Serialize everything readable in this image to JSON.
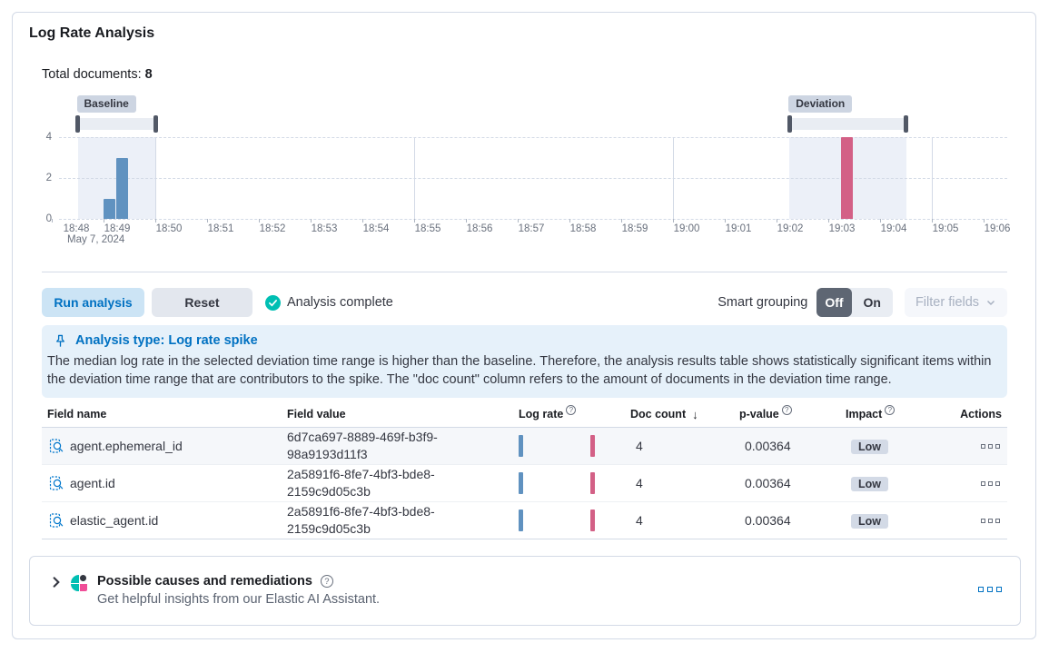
{
  "panel": {
    "title": "Log Rate Analysis",
    "total_documents_label": "Total documents:",
    "total_documents_value": "8"
  },
  "chart_data": {
    "type": "bar",
    "title": "Log rate document count histogram",
    "x_axis": {
      "date_label": "May 7, 2024",
      "tick_labels": [
        "18:48",
        "18:49",
        "18:50",
        "18:51",
        "18:52",
        "18:53",
        "18:54",
        "18:55",
        "18:56",
        "18:57",
        "18:58",
        "18:59",
        "19:00",
        "19:01",
        "19:02",
        "19:03",
        "19:04",
        "19:05",
        "19:06"
      ],
      "gridlines": [
        "18:50",
        "18:55",
        "19:00",
        "19:05"
      ]
    },
    "y_axis": {
      "ticks": [
        0,
        2,
        4
      ],
      "max": 4
    },
    "bars": [
      {
        "series": "baseline",
        "time": "18:49:00",
        "value": 1,
        "color": "#6092C0"
      },
      {
        "series": "baseline",
        "time": "18:49:15",
        "value": 3,
        "color": "#6092C0"
      },
      {
        "series": "deviation",
        "time": "19:03:15",
        "value": 4,
        "color": "#D36086"
      }
    ],
    "brushes": [
      {
        "id": "baseline",
        "label": "Baseline",
        "start": "18:48:30",
        "end": "18:50:00"
      },
      {
        "id": "deviation",
        "label": "Deviation",
        "start": "19:02:15",
        "end": "19:04:30"
      }
    ]
  },
  "controls": {
    "run_analysis": "Run analysis",
    "reset": "Reset",
    "status": "Analysis complete",
    "smart_grouping_label": "Smart grouping",
    "toggle_off": "Off",
    "toggle_on": "On",
    "filter_fields": "Filter fields"
  },
  "callout": {
    "title": "Analysis type: Log rate spike",
    "body": "The median log rate in the selected deviation time range is higher than the baseline. Therefore, the analysis results table shows statistically significant items within the deviation time range that are contributors to the spike. The \"doc count\" column refers to the amount of documents in the deviation time range."
  },
  "table": {
    "headers": {
      "field_name": "Field name",
      "field_value": "Field value",
      "log_rate": "Log rate",
      "doc_count": "Doc count",
      "p_value": "p-value",
      "impact": "Impact",
      "actions": "Actions"
    },
    "sort": {
      "column": "doc_count",
      "direction": "desc",
      "arrow": "↓"
    },
    "rows": [
      {
        "field_name": "agent.ephemeral_id",
        "field_value": "6d7ca697-8889-469f-b3f9-98a9193d11f3",
        "doc_count": "4",
        "p_value": "0.00364",
        "impact": "Low"
      },
      {
        "field_name": "agent.id",
        "field_value": "2a5891f6-8fe7-4bf3-bde8-2159c9d05c3b",
        "doc_count": "4",
        "p_value": "0.00364",
        "impact": "Low"
      },
      {
        "field_name": "elastic_agent.id",
        "field_value": "2a5891f6-8fe7-4bf3-bde8-2159c9d05c3b",
        "doc_count": "4",
        "p_value": "0.00364",
        "impact": "Low"
      }
    ]
  },
  "insights_panel": {
    "title": "Possible causes and remediations",
    "subtitle": "Get helpful insights from our Elastic AI Assistant."
  },
  "icons": {
    "status": "check-in-circle",
    "callout": "pin",
    "row_field": "filter-magnifier",
    "header_info": "question-in-circle",
    "insights_expand": "chevron-right",
    "insights_logo": "elastic-ai-assistant",
    "row_actions": "three-boxes",
    "filter_fields_chevron": "chevron-down"
  },
  "colors": {
    "baseline_bar": "#6092C0",
    "deviation_bar": "#D36086",
    "primary_blue": "#0071C2",
    "status_teal": "#00BFB3",
    "callout_bg": "#E6F1FA",
    "badge_bg": "#D3DAE6"
  }
}
